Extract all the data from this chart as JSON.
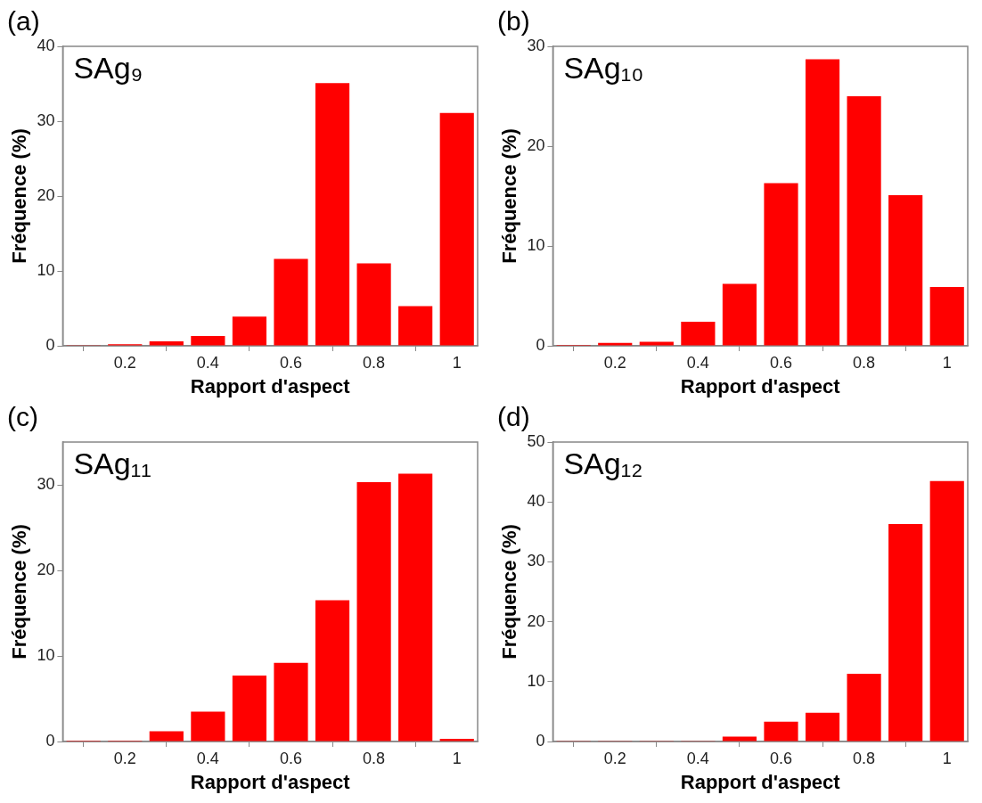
{
  "chart_data": [
    {
      "type": "bar",
      "title": "(a)",
      "xlabel": "Rapport d'aspect",
      "ylabel": "Fréquence (%)",
      "annotations": [
        "SAg₉"
      ],
      "x": [
        0.1,
        0.2,
        0.3,
        0.4,
        0.5,
        0.6,
        0.7,
        0.8,
        0.9,
        1.0
      ],
      "values": [
        0.1,
        0.2,
        0.6,
        1.3,
        3.9,
        11.6,
        35.1,
        11.0,
        5.3,
        31.1
      ],
      "color": "#ff0000",
      "xlim": [
        0.05,
        1.05
      ],
      "xticks": [
        0.2,
        0.4,
        0.6,
        0.8,
        1
      ],
      "ylim": [
        0,
        40
      ],
      "yticks": [
        0,
        10,
        20,
        30,
        40
      ]
    },
    {
      "type": "bar",
      "title": "(b)",
      "xlabel": "Rapport d'aspect",
      "ylabel": "Fréquence (%)",
      "annotations": [
        "SAg₁₀"
      ],
      "x": [
        0.1,
        0.2,
        0.3,
        0.4,
        0.5,
        0.6,
        0.7,
        0.8,
        0.9,
        1.0
      ],
      "values": [
        0.1,
        0.3,
        0.4,
        2.4,
        6.2,
        16.3,
        28.7,
        25.0,
        15.1,
        5.9
      ],
      "color": "#ff0000",
      "xlim": [
        0.05,
        1.05
      ],
      "xticks": [
        0.2,
        0.4,
        0.6,
        0.8,
        1
      ],
      "ylim": [
        0,
        30
      ],
      "yticks": [
        0,
        10,
        20,
        30
      ]
    },
    {
      "type": "bar",
      "title": "(c)",
      "xlabel": "Rapport d'aspect",
      "ylabel": "Fréquence (%)",
      "annotations": [
        "SAg₁₁"
      ],
      "x": [
        0.1,
        0.2,
        0.3,
        0.4,
        0.5,
        0.6,
        0.7,
        0.8,
        0.9,
        1.0
      ],
      "values": [
        0.1,
        0.1,
        1.2,
        3.5,
        7.7,
        9.2,
        16.5,
        30.3,
        31.3,
        0.3
      ],
      "color": "#ff0000",
      "xlim": [
        0.05,
        1.05
      ],
      "xticks": [
        0.2,
        0.4,
        0.6,
        0.8,
        1
      ],
      "ylim": [
        0,
        35
      ],
      "yticks": [
        0,
        10,
        20,
        30
      ]
    },
    {
      "type": "bar",
      "title": "(d)",
      "xlabel": "Rapport d'aspect",
      "ylabel": "Fréquence (%)",
      "annotations": [
        "SAg₁₂"
      ],
      "x": [
        0.1,
        0.2,
        0.3,
        0.4,
        0.5,
        0.6,
        0.7,
        0.8,
        0.9,
        1.0
      ],
      "values": [
        0.1,
        0.1,
        0.1,
        0.1,
        0.8,
        3.3,
        4.8,
        11.3,
        36.3,
        43.5
      ],
      "color": "#ff0000",
      "xlim": [
        0.05,
        1.05
      ],
      "xticks": [
        0.2,
        0.4,
        0.6,
        0.8,
        1
      ],
      "ylim": [
        0,
        50
      ],
      "yticks": [
        0,
        10,
        20,
        30,
        40,
        50
      ]
    }
  ]
}
